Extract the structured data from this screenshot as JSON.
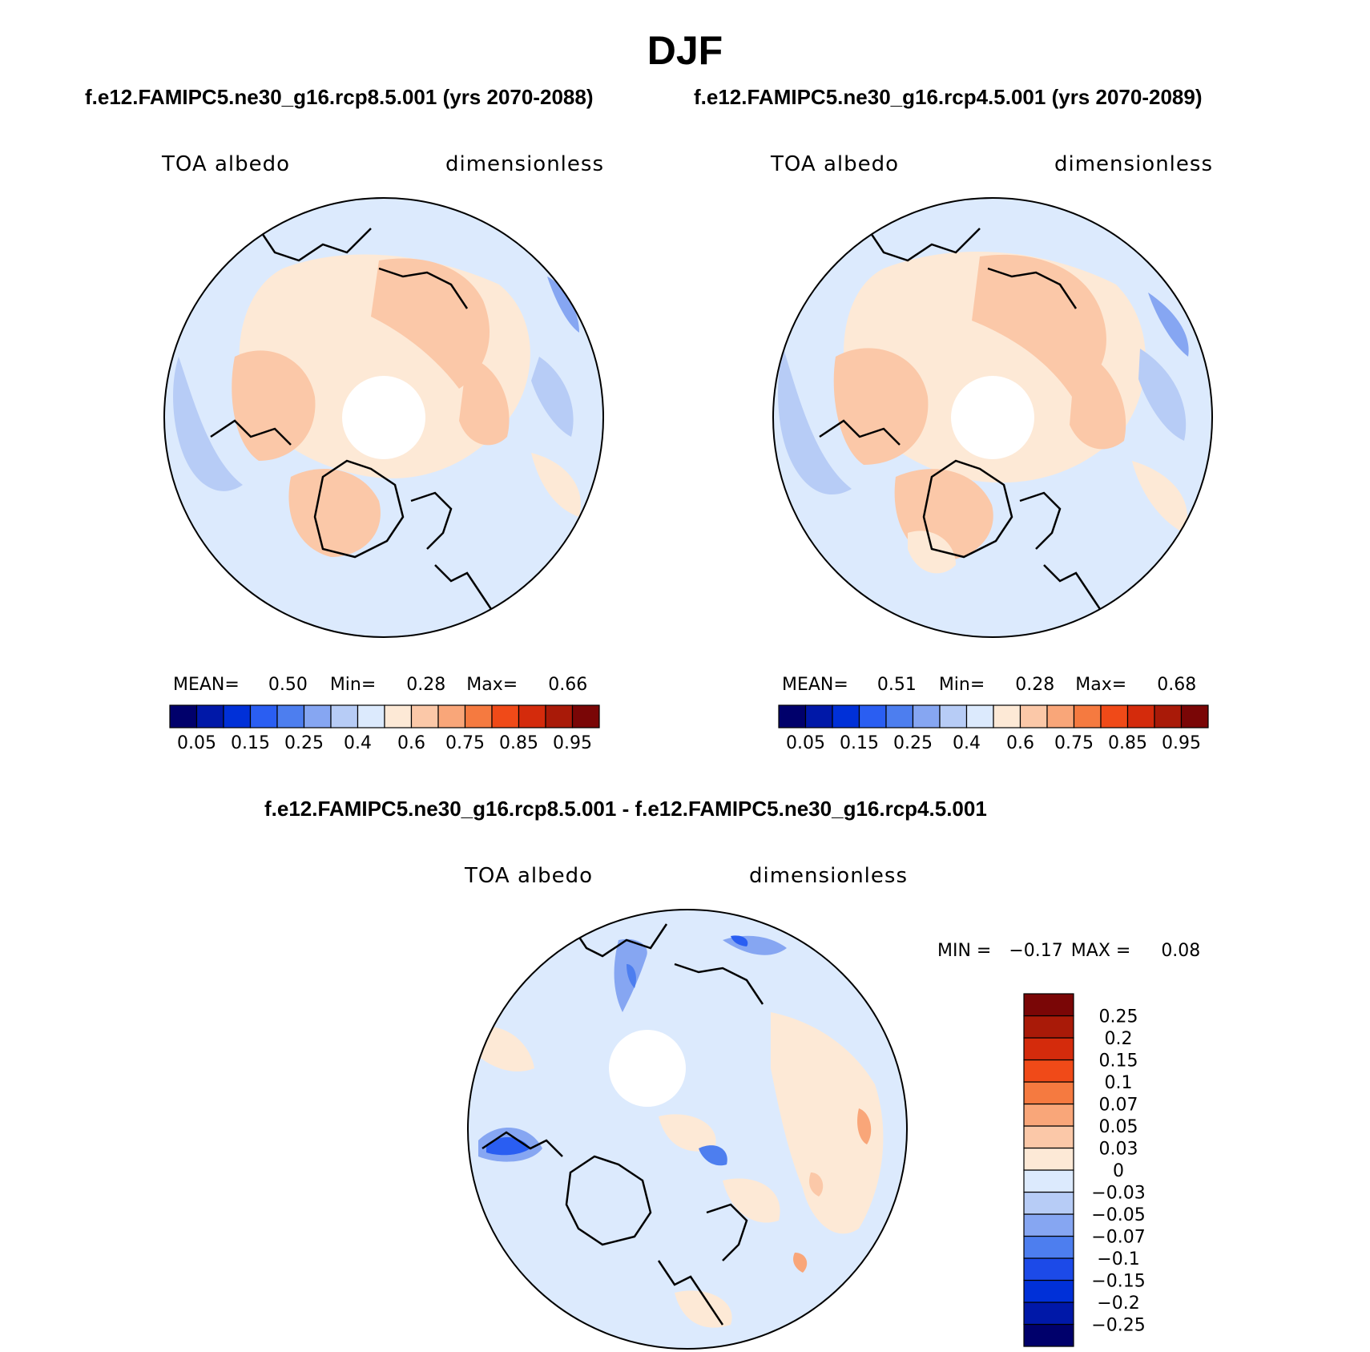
{
  "title": "DJF",
  "panels": [
    {
      "case": "f.e12.FAMIPC5.ne30_g16.rcp8.5.001 (yrs 2070-2088)",
      "left_label": "TOA albedo",
      "right_label": "dimensionless",
      "stats": {
        "mean_label": "MEAN=",
        "mean": "0.50",
        "min_label": "Min=",
        "min": "0.28",
        "max_label": "Max=",
        "max": "0.66"
      }
    },
    {
      "case": "f.e12.FAMIPC5.ne30_g16.rcp4.5.001 (yrs 2070-2089)",
      "left_label": "TOA albedo",
      "right_label": "dimensionless",
      "stats": {
        "mean_label": "MEAN=",
        "mean": "0.51",
        "min_label": "Min=",
        "min": "0.28",
        "max_label": "Max=",
        "max": "0.68"
      }
    }
  ],
  "diff": {
    "title": "f.e12.FAMIPC5.ne30_g16.rcp8.5.001 - f.e12.FAMIPC5.ne30_g16.rcp4.5.001",
    "left_label": "TOA albedo",
    "right_label": "dimensionless",
    "stats": {
      "min_label": "MIN =",
      "min": "−0.17",
      "max_label": "MAX =",
      "max": "0.08"
    }
  },
  "colorbar_abs": {
    "colors": [
      "#00006b",
      "#0018a8",
      "#0030d8",
      "#2a5ef2",
      "#4d7eef",
      "#86a6f2",
      "#b7ccf6",
      "#dceafd",
      "#fde9d6",
      "#fbc8a8",
      "#f9a679",
      "#f57a40",
      "#f04a18",
      "#d42b0c",
      "#a91a08",
      "#7a0606"
    ],
    "labels": [
      "0.05",
      "0.15",
      "0.25",
      "0.4",
      "0.6",
      "0.75",
      "0.85",
      "0.95"
    ]
  },
  "colorbar_diff": {
    "colors": [
      "#00006b",
      "#0018a8",
      "#0030d8",
      "#1c4ae8",
      "#4d7eef",
      "#86a6f2",
      "#b7ccf6",
      "#dceafd",
      "#fde9d6",
      "#fbc8a8",
      "#f9a679",
      "#f57a40",
      "#f04a18",
      "#d42b0c",
      "#a91a08",
      "#7a0606"
    ],
    "labels": [
      "−0.25",
      "−0.2",
      "−0.15",
      "−0.1",
      "−0.07",
      "−0.05",
      "−0.03",
      "0",
      "0.03",
      "0.05",
      "0.07",
      "0.1",
      "0.15",
      "0.2",
      "0.25"
    ]
  }
}
